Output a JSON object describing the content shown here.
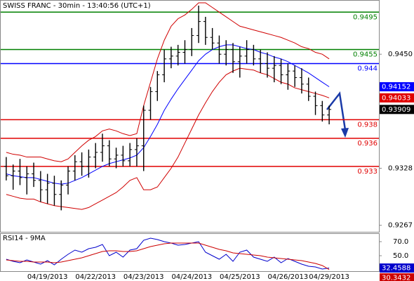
{
  "chart_data": [
    {
      "type": "ohlc",
      "title": "SWISS FRANC - 30min - 13:40:56 (UTC+1)",
      "categories": [
        null,
        null,
        null,
        null,
        null,
        null,
        "04/19/2013",
        null,
        null,
        null,
        null,
        null,
        null,
        "04/22/2013",
        null,
        null,
        null,
        null,
        null,
        null,
        "04/23/2013",
        null,
        null,
        null,
        null,
        null,
        null,
        "04/24/2013",
        null,
        null,
        null,
        null,
        null,
        null,
        "04/25/2013",
        null,
        null,
        null,
        null,
        null,
        null,
        "04/26/2013",
        null,
        null,
        null,
        null,
        null,
        "04/29/2013"
      ],
      "open": [
        0.933,
        0.932,
        0.9325,
        0.9318,
        0.9322,
        0.9315,
        0.9305,
        0.9312,
        0.93,
        0.931,
        0.9325,
        0.9335,
        0.933,
        0.934,
        0.9345,
        0.9352,
        0.9338,
        0.9342,
        0.9336,
        0.9348,
        0.9352,
        0.939,
        0.941,
        0.9428,
        0.9445,
        0.9448,
        0.9452,
        0.9455,
        0.947,
        0.9485,
        0.9468,
        0.9462,
        0.945,
        0.9455,
        0.9442,
        0.9448,
        0.9455,
        0.9445,
        0.944,
        0.9435,
        0.9438,
        0.9428,
        0.9432,
        0.9425,
        0.9418,
        0.9405,
        0.9395,
        0.9385
      ],
      "high": [
        0.934,
        0.9332,
        0.9338,
        0.933,
        0.9334,
        0.9325,
        0.9322,
        0.932,
        0.9315,
        0.933,
        0.9342,
        0.9345,
        0.9348,
        0.9355,
        0.9365,
        0.9358,
        0.935,
        0.9352,
        0.9355,
        0.936,
        0.9395,
        0.9415,
        0.9432,
        0.9455,
        0.9458,
        0.946,
        0.9465,
        0.9478,
        0.9502,
        0.949,
        0.9478,
        0.947,
        0.9465,
        0.9462,
        0.9458,
        0.9465,
        0.946,
        0.9455,
        0.9452,
        0.9448,
        0.9445,
        0.944,
        0.9438,
        0.9435,
        0.9425,
        0.941,
        0.94,
        0.9395
      ],
      "low": [
        0.9315,
        0.9305,
        0.931,
        0.93,
        0.9308,
        0.9292,
        0.929,
        0.9288,
        0.9283,
        0.93,
        0.9315,
        0.932,
        0.9318,
        0.9328,
        0.9335,
        0.933,
        0.9328,
        0.933,
        0.933,
        0.933,
        0.9325,
        0.938,
        0.94,
        0.942,
        0.9435,
        0.9438,
        0.944,
        0.9448,
        0.9462,
        0.946,
        0.9455,
        0.944,
        0.9438,
        0.943,
        0.9425,
        0.944,
        0.9438,
        0.943,
        0.9425,
        0.942,
        0.9418,
        0.9412,
        0.9415,
        0.9408,
        0.94,
        0.9385,
        0.9378,
        0.9375
      ],
      "close": [
        0.932,
        0.9325,
        0.9318,
        0.9322,
        0.9315,
        0.9305,
        0.9312,
        0.93,
        0.931,
        0.9325,
        0.9335,
        0.933,
        0.934,
        0.9345,
        0.9352,
        0.9338,
        0.9342,
        0.9336,
        0.9348,
        0.9352,
        0.939,
        0.941,
        0.9428,
        0.9445,
        0.9448,
        0.9452,
        0.9455,
        0.947,
        0.9485,
        0.9468,
        0.9462,
        0.945,
        0.9455,
        0.9442,
        0.9448,
        0.9455,
        0.9445,
        0.944,
        0.9435,
        0.9438,
        0.9428,
        0.9432,
        0.9425,
        0.9418,
        0.9405,
        0.9395,
        0.9385,
        0.93909
      ],
      "overlays": [
        {
          "color": "#d00000",
          "values": [
            0.9345,
            0.9343,
            0.9342,
            0.934,
            0.934,
            0.934,
            0.9338,
            0.9336,
            0.9335,
            0.9338,
            0.9345,
            0.9352,
            0.9358,
            0.9362,
            0.9368,
            0.937,
            0.9368,
            0.9365,
            0.9363,
            0.9365,
            0.9395,
            0.942,
            0.9445,
            0.9465,
            0.948,
            0.9488,
            0.9492,
            0.9498,
            0.9505,
            0.9505,
            0.95,
            0.9495,
            0.949,
            0.9485,
            0.948,
            0.9478,
            0.9476,
            0.9474,
            0.9472,
            0.947,
            0.9468,
            0.9465,
            0.9462,
            0.9458,
            0.9456,
            0.9452,
            0.945,
            0.9445
          ]
        },
        {
          "color": "#0000ff",
          "values": [
            0.9322,
            0.932,
            0.9319,
            0.9318,
            0.9318,
            0.9316,
            0.9314,
            0.9312,
            0.9311,
            0.9312,
            0.9315,
            0.9318,
            0.9322,
            0.9326,
            0.933,
            0.9333,
            0.9335,
            0.9337,
            0.9339,
            0.9342,
            0.935,
            0.9362,
            0.9375,
            0.939,
            0.9402,
            0.9413,
            0.9423,
            0.9433,
            0.9443,
            0.945,
            0.9455,
            0.9458,
            0.946,
            0.946,
            0.9458,
            0.9456,
            0.9455,
            0.9452,
            0.945,
            0.9447,
            0.9445,
            0.9442,
            0.9438,
            0.9434,
            0.943,
            0.9425,
            0.942,
            0.94152
          ]
        },
        {
          "color": "#d00000",
          "values": [
            0.93,
            0.9298,
            0.9296,
            0.9295,
            0.9295,
            0.9292,
            0.929,
            0.9288,
            0.9287,
            0.9286,
            0.9285,
            0.9284,
            0.9286,
            0.929,
            0.9294,
            0.9298,
            0.9302,
            0.9308,
            0.9315,
            0.9318,
            0.9305,
            0.9305,
            0.9308,
            0.9318,
            0.9328,
            0.934,
            0.9355,
            0.937,
            0.9385,
            0.9398,
            0.941,
            0.942,
            0.9428,
            0.9432,
            0.9435,
            0.9434,
            0.9433,
            0.943,
            0.9428,
            0.9424,
            0.942,
            0.9418,
            0.9414,
            0.9412,
            0.941,
            0.9408,
            0.9406,
            0.94033
          ]
        }
      ],
      "levels": [
        {
          "value": 0.9495,
          "color": "#008000"
        },
        {
          "value": 0.9455,
          "color": "#008000"
        },
        {
          "value": 0.944,
          "color": "#0000ff"
        },
        {
          "value": 0.938,
          "color": "#e00000"
        },
        {
          "value": 0.936,
          "color": "#e00000"
        },
        {
          "value": 0.933,
          "color": "#e00000"
        }
      ],
      "tags": [
        {
          "series": 1,
          "color": "#0000ff"
        },
        {
          "series": 2,
          "color": "#e00000"
        }
      ],
      "close_tag_color": "#000000",
      "ylim": [
        0.926,
        0.9508
      ],
      "yticks": [
        {
          "value": 0.945,
          "label": "0.9450"
        },
        0.9328,
        0.9267
      ]
    },
    {
      "type": "line",
      "title": "RSI14 - 9MA",
      "series": [
        {
          "color": "#0000cc",
          "values": [
            45,
            42,
            40,
            44,
            41,
            38,
            43,
            37,
            45,
            52,
            58,
            55,
            60,
            62,
            66,
            50,
            55,
            48,
            58,
            60,
            72,
            75,
            73,
            70,
            68,
            65,
            66,
            68,
            70,
            55,
            50,
            45,
            52,
            42,
            55,
            58,
            48,
            45,
            42,
            48,
            40,
            46,
            42,
            38,
            35,
            34,
            31,
            32.4588
          ]
        },
        {
          "color": "#cc0000",
          "values": [
            44,
            43,
            42,
            42,
            41,
            41,
            41,
            40,
            41,
            43,
            45,
            47,
            50,
            53,
            56,
            57,
            57,
            56,
            56,
            57,
            60,
            63,
            65,
            67,
            68,
            68,
            68,
            68,
            68,
            65,
            62,
            59,
            57,
            54,
            53,
            52,
            51,
            50,
            48,
            47,
            46,
            45,
            44,
            43,
            41,
            39,
            36,
            30.3432
          ]
        }
      ],
      "ylim": [
        28,
        81
      ],
      "yticks": [
        {
          "value": 70,
          "label": "70.0"
        },
        {
          "value": 50,
          "label": "50.0"
        }
      ]
    }
  ]
}
